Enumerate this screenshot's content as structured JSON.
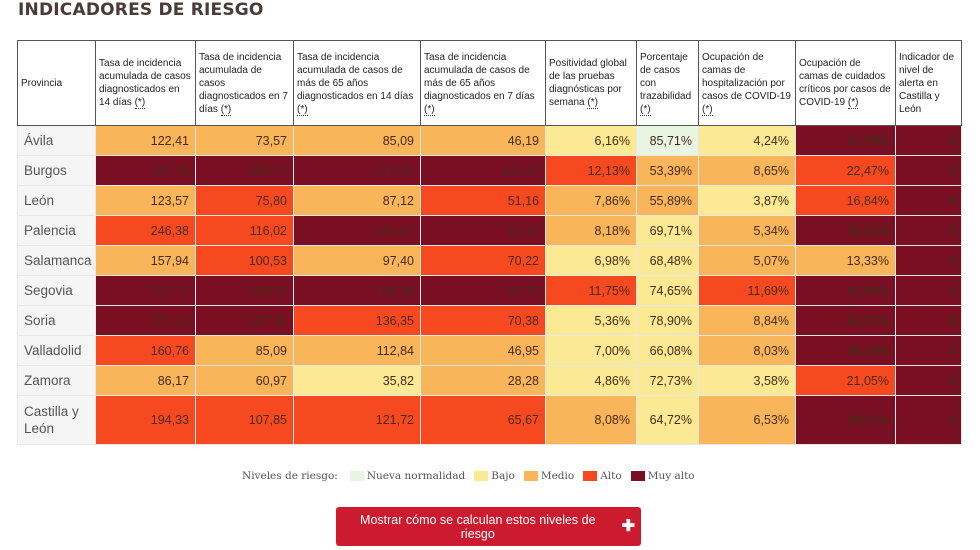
{
  "title": "INDICADORES DE RIESGO",
  "table": {
    "headers": [
      {
        "text": "Provincia",
        "ast": ""
      },
      {
        "text": "Tasa de incidencia acumulada de casos diagnosticados en 14 días ",
        "ast": "(*)"
      },
      {
        "text": "Tasa de incidencia acumulada de casos diagnosticados en 7 días ",
        "ast": "(*)"
      },
      {
        "text": "Tasa de incidencia acumulada de casos de más de 65 años diagnosticados en 14 días ",
        "ast": "(*)"
      },
      {
        "text": "Tasa de incidencia acumulada de casos de más de 65 años diagnosticados en 7 días ",
        "ast": "(*)"
      },
      {
        "text": "Positividad global de las pruebas diagnósticas por semana ",
        "ast": "(*)"
      },
      {
        "text": "Porcentaje de casos con trazabilidad ",
        "ast": "(*)"
      },
      {
        "text": "Ocupación de camas de hospitalización por casos de COVID-19 ",
        "ast": "(*)"
      },
      {
        "text": "Ocupación de camas de cuidados críticos por casos de COVID-19 ",
        "ast": "(*)"
      },
      {
        "text": "Indicador de nivel de alerta en Castilla y León",
        "ast": ""
      }
    ],
    "rows": [
      {
        "prov": "Ávila",
        "cells": [
          {
            "v": "122,41",
            "l": 2
          },
          {
            "v": "73,57",
            "l": 2
          },
          {
            "v": "85,09",
            "l": 2
          },
          {
            "v": "46,19",
            "l": 2
          },
          {
            "v": "6,16%",
            "l": 1
          },
          {
            "v": "85,71%",
            "l": 0
          },
          {
            "v": "4,24%",
            "l": 1
          },
          {
            "v": "27,78%",
            "l": 4
          },
          {
            "v": "4",
            "l": 4
          }
        ]
      },
      {
        "prov": "Burgos",
        "cells": [
          {
            "v": "337,76",
            "l": 4
          },
          {
            "v": "186,77",
            "l": 4
          },
          {
            "v": "215,65",
            "l": 4
          },
          {
            "v": "121,23",
            "l": 4
          },
          {
            "v": "12,13%",
            "l": 3
          },
          {
            "v": "53,39%",
            "l": 2
          },
          {
            "v": "8,65%",
            "l": 2
          },
          {
            "v": "22,47%",
            "l": 3
          },
          {
            "v": "4",
            "l": 4
          }
        ]
      },
      {
        "prov": "León",
        "cells": [
          {
            "v": "123,57",
            "l": 2
          },
          {
            "v": "75,80",
            "l": 3
          },
          {
            "v": "87,12",
            "l": 2
          },
          {
            "v": "51,16",
            "l": 3
          },
          {
            "v": "7,86%",
            "l": 2
          },
          {
            "v": "55,89%",
            "l": 2
          },
          {
            "v": "3,87%",
            "l": 1
          },
          {
            "v": "16,84%",
            "l": 3
          },
          {
            "v": "4",
            "l": 4
          }
        ]
      },
      {
        "prov": "Palencia",
        "cells": [
          {
            "v": "246,38",
            "l": 3
          },
          {
            "v": "116,02",
            "l": 3
          },
          {
            "v": "193,67",
            "l": 4
          },
          {
            "v": "82,31",
            "l": 4
          },
          {
            "v": "8,18%",
            "l": 2
          },
          {
            "v": "69,71%",
            "l": 1
          },
          {
            "v": "5,34%",
            "l": 2
          },
          {
            "v": "36,11%",
            "l": 4
          },
          {
            "v": "4",
            "l": 4
          }
        ]
      },
      {
        "prov": "Salamanca",
        "cells": [
          {
            "v": "157,94",
            "l": 2
          },
          {
            "v": "100,53",
            "l": 3
          },
          {
            "v": "97,40",
            "l": 2
          },
          {
            "v": "70,22",
            "l": 3
          },
          {
            "v": "6,98%",
            "l": 1
          },
          {
            "v": "68,48%",
            "l": 1
          },
          {
            "v": "5,07%",
            "l": 2
          },
          {
            "v": "13,33%",
            "l": 2
          },
          {
            "v": "4",
            "l": 4
          }
        ]
      },
      {
        "prov": "Segovia",
        "cells": [
          {
            "v": "357,71",
            "l": 4
          },
          {
            "v": "168,10",
            "l": 4
          },
          {
            "v": "186,36",
            "l": 4
          },
          {
            "v": "91,75",
            "l": 4
          },
          {
            "v": "11,75%",
            "l": 3
          },
          {
            "v": "74,65%",
            "l": 1
          },
          {
            "v": "11,69%",
            "l": 3
          },
          {
            "v": "41,94%",
            "l": 4
          },
          {
            "v": "4",
            "l": 4
          }
        ]
      },
      {
        "prov": "Soria",
        "cells": [
          {
            "v": "271,14",
            "l": 4
          },
          {
            "v": "147,38",
            "l": 4
          },
          {
            "v": "136,35",
            "l": 3
          },
          {
            "v": "70,38",
            "l": 3
          },
          {
            "v": "5,36%",
            "l": 1
          },
          {
            "v": "78,90%",
            "l": 1
          },
          {
            "v": "8,84%",
            "l": 2
          },
          {
            "v": "64,71%",
            "l": 4
          },
          {
            "v": "4",
            "l": 4
          }
        ]
      },
      {
        "prov": "Valladolid",
        "cells": [
          {
            "v": "160,76",
            "l": 3
          },
          {
            "v": "85,09",
            "l": 2
          },
          {
            "v": "112,84",
            "l": 2
          },
          {
            "v": "46,95",
            "l": 2
          },
          {
            "v": "7,00%",
            "l": 1
          },
          {
            "v": "66,08%",
            "l": 1
          },
          {
            "v": "8,03%",
            "l": 2
          },
          {
            "v": "38,10%",
            "l": 4
          },
          {
            "v": "4",
            "l": 4
          }
        ]
      },
      {
        "prov": "Zamora",
        "cells": [
          {
            "v": "86,17",
            "l": 2
          },
          {
            "v": "60,97",
            "l": 2
          },
          {
            "v": "35,82",
            "l": 1
          },
          {
            "v": "28,28",
            "l": 2
          },
          {
            "v": "4,86%",
            "l": 1
          },
          {
            "v": "72,73%",
            "l": 1
          },
          {
            "v": "3,58%",
            "l": 1
          },
          {
            "v": "21,05%",
            "l": 3
          },
          {
            "v": "4",
            "l": 4
          }
        ]
      },
      {
        "prov": "Castilla y León",
        "cells": [
          {
            "v": "194,33",
            "l": 3
          },
          {
            "v": "107,85",
            "l": 3
          },
          {
            "v": "121,72",
            "l": 3
          },
          {
            "v": "65,67",
            "l": 3
          },
          {
            "v": "8,08%",
            "l": 2
          },
          {
            "v": "64,72%",
            "l": 1
          },
          {
            "v": "6,53%",
            "l": 2
          },
          {
            "v": "28,11%",
            "l": 4
          },
          {
            "v": "4",
            "l": 4
          }
        ]
      }
    ]
  },
  "legend": {
    "label": "Niveles de riesgo:",
    "items": [
      {
        "label": "Nueva normalidad",
        "color": "#e9f5e3"
      },
      {
        "label": "Bajo",
        "color": "#fbe993"
      },
      {
        "label": "Medio",
        "color": "#f8b55a"
      },
      {
        "label": "Alto",
        "color": "#f7491f"
      },
      {
        "label": "Muy alto",
        "color": "#7a0e22"
      }
    ]
  },
  "button": {
    "label": "Mostrar cómo se calculan estos niveles de riesgo",
    "icon": "plus-icon",
    "color": "#cc1b2e"
  }
}
